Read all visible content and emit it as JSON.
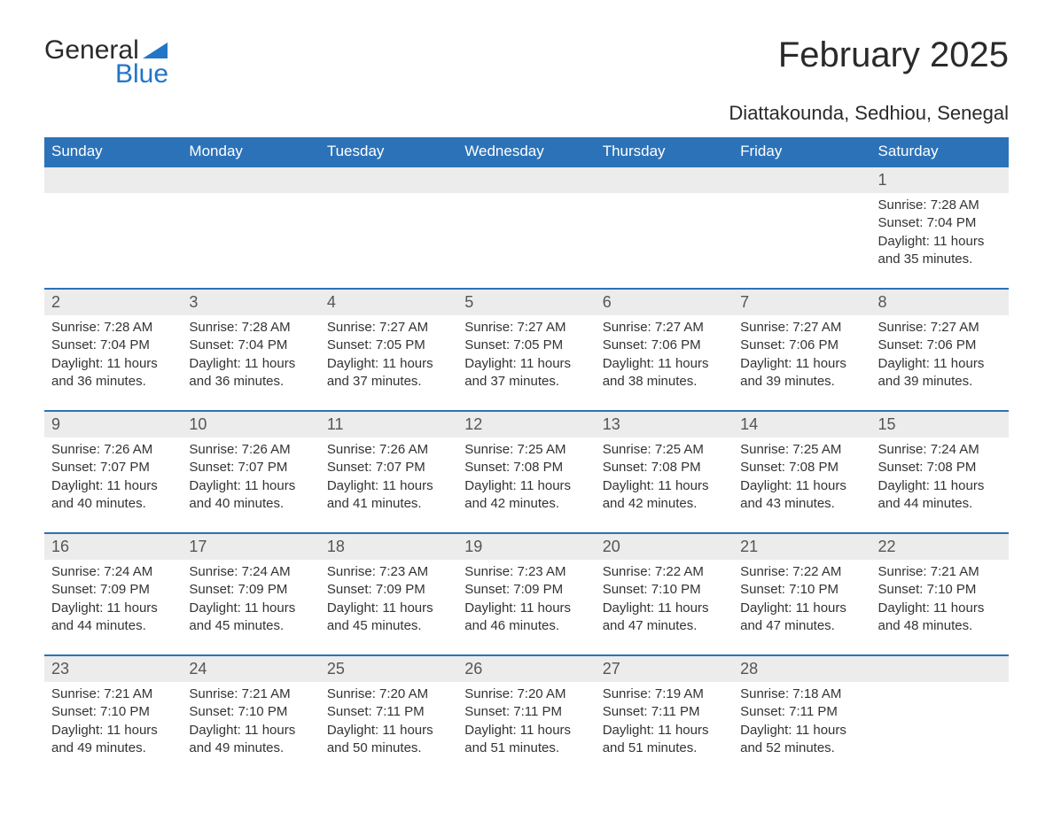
{
  "logo": {
    "part1": "General",
    "part2": "Blue",
    "text_color": "#2a2a2a",
    "accent_color": "#2176c7"
  },
  "title": "February 2025",
  "subtitle": "Diattakounda, Sedhiou, Senegal",
  "colors": {
    "header_bg": "#2c72b8",
    "header_text": "#ffffff",
    "daynum_bg": "#ececec",
    "daynum_text": "#555555",
    "body_text": "#333333",
    "rule": "#2c72b8",
    "page_bg": "#ffffff"
  },
  "typography": {
    "title_fontsize": 40,
    "subtitle_fontsize": 22,
    "header_fontsize": 17,
    "daynum_fontsize": 18,
    "cell_fontsize": 15
  },
  "layout": {
    "columns": 7,
    "rows": 5,
    "first_weekday_index": 6
  },
  "weekdays": [
    "Sunday",
    "Monday",
    "Tuesday",
    "Wednesday",
    "Thursday",
    "Friday",
    "Saturday"
  ],
  "labels": {
    "sunrise": "Sunrise:",
    "sunset": "Sunset:",
    "daylight": "Daylight:"
  },
  "days": [
    {
      "n": 1,
      "sunrise": "7:28 AM",
      "sunset": "7:04 PM",
      "day_h": 11,
      "day_m": 35
    },
    {
      "n": 2,
      "sunrise": "7:28 AM",
      "sunset": "7:04 PM",
      "day_h": 11,
      "day_m": 36
    },
    {
      "n": 3,
      "sunrise": "7:28 AM",
      "sunset": "7:04 PM",
      "day_h": 11,
      "day_m": 36
    },
    {
      "n": 4,
      "sunrise": "7:27 AM",
      "sunset": "7:05 PM",
      "day_h": 11,
      "day_m": 37
    },
    {
      "n": 5,
      "sunrise": "7:27 AM",
      "sunset": "7:05 PM",
      "day_h": 11,
      "day_m": 37
    },
    {
      "n": 6,
      "sunrise": "7:27 AM",
      "sunset": "7:06 PM",
      "day_h": 11,
      "day_m": 38
    },
    {
      "n": 7,
      "sunrise": "7:27 AM",
      "sunset": "7:06 PM",
      "day_h": 11,
      "day_m": 39
    },
    {
      "n": 8,
      "sunrise": "7:27 AM",
      "sunset": "7:06 PM",
      "day_h": 11,
      "day_m": 39
    },
    {
      "n": 9,
      "sunrise": "7:26 AM",
      "sunset": "7:07 PM",
      "day_h": 11,
      "day_m": 40
    },
    {
      "n": 10,
      "sunrise": "7:26 AM",
      "sunset": "7:07 PM",
      "day_h": 11,
      "day_m": 40
    },
    {
      "n": 11,
      "sunrise": "7:26 AM",
      "sunset": "7:07 PM",
      "day_h": 11,
      "day_m": 41
    },
    {
      "n": 12,
      "sunrise": "7:25 AM",
      "sunset": "7:08 PM",
      "day_h": 11,
      "day_m": 42
    },
    {
      "n": 13,
      "sunrise": "7:25 AM",
      "sunset": "7:08 PM",
      "day_h": 11,
      "day_m": 42
    },
    {
      "n": 14,
      "sunrise": "7:25 AM",
      "sunset": "7:08 PM",
      "day_h": 11,
      "day_m": 43
    },
    {
      "n": 15,
      "sunrise": "7:24 AM",
      "sunset": "7:08 PM",
      "day_h": 11,
      "day_m": 44
    },
    {
      "n": 16,
      "sunrise": "7:24 AM",
      "sunset": "7:09 PM",
      "day_h": 11,
      "day_m": 44
    },
    {
      "n": 17,
      "sunrise": "7:24 AM",
      "sunset": "7:09 PM",
      "day_h": 11,
      "day_m": 45
    },
    {
      "n": 18,
      "sunrise": "7:23 AM",
      "sunset": "7:09 PM",
      "day_h": 11,
      "day_m": 45
    },
    {
      "n": 19,
      "sunrise": "7:23 AM",
      "sunset": "7:09 PM",
      "day_h": 11,
      "day_m": 46
    },
    {
      "n": 20,
      "sunrise": "7:22 AM",
      "sunset": "7:10 PM",
      "day_h": 11,
      "day_m": 47
    },
    {
      "n": 21,
      "sunrise": "7:22 AM",
      "sunset": "7:10 PM",
      "day_h": 11,
      "day_m": 47
    },
    {
      "n": 22,
      "sunrise": "7:21 AM",
      "sunset": "7:10 PM",
      "day_h": 11,
      "day_m": 48
    },
    {
      "n": 23,
      "sunrise": "7:21 AM",
      "sunset": "7:10 PM",
      "day_h": 11,
      "day_m": 49
    },
    {
      "n": 24,
      "sunrise": "7:21 AM",
      "sunset": "7:10 PM",
      "day_h": 11,
      "day_m": 49
    },
    {
      "n": 25,
      "sunrise": "7:20 AM",
      "sunset": "7:11 PM",
      "day_h": 11,
      "day_m": 50
    },
    {
      "n": 26,
      "sunrise": "7:20 AM",
      "sunset": "7:11 PM",
      "day_h": 11,
      "day_m": 51
    },
    {
      "n": 27,
      "sunrise": "7:19 AM",
      "sunset": "7:11 PM",
      "day_h": 11,
      "day_m": 51
    },
    {
      "n": 28,
      "sunrise": "7:18 AM",
      "sunset": "7:11 PM",
      "day_h": 11,
      "day_m": 52
    }
  ]
}
